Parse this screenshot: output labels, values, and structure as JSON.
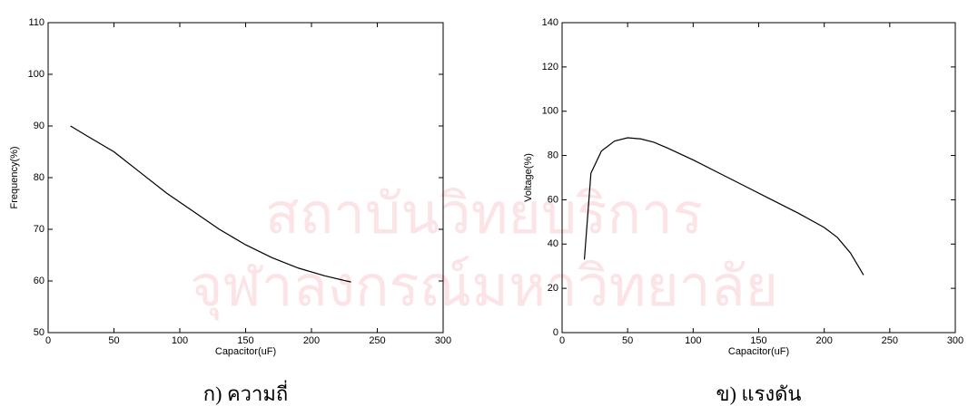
{
  "watermark": [
    "สถาบันวิทยบริการ",
    "จุฬาลงกรณ์มหาวิทยาลัย"
  ],
  "chart_data": [
    {
      "type": "line",
      "caption": "ก) ความถี่",
      "x_label": "Capacitor(uF)",
      "y_label": "Frequency(%)",
      "xlim": [
        0,
        300
      ],
      "xticks": [
        0,
        50,
        100,
        150,
        200,
        250,
        300
      ],
      "ylim": [
        50,
        110
      ],
      "yticks": [
        50,
        60,
        70,
        80,
        90,
        100,
        110
      ],
      "series": [
        {
          "color": "#000000",
          "x": [
            17,
            30,
            50,
            70,
            90,
            110,
            130,
            150,
            170,
            190,
            210,
            230
          ],
          "values": [
            90,
            88,
            85,
            81,
            77,
            73.5,
            70,
            67,
            64.5,
            62.5,
            61,
            59.8
          ]
        }
      ]
    },
    {
      "type": "line",
      "caption": "ข) แรงดัน",
      "x_label": "Capacitor(uF)",
      "y_label": "Voltage(%)",
      "xlim": [
        0,
        300
      ],
      "xticks": [
        0,
        50,
        100,
        150,
        200,
        250,
        300
      ],
      "ylim": [
        0,
        140
      ],
      "yticks": [
        0,
        20,
        40,
        60,
        80,
        100,
        120,
        140
      ],
      "series": [
        {
          "color": "#000000",
          "x": [
            17,
            22,
            30,
            40,
            50,
            60,
            70,
            80,
            100,
            120,
            140,
            160,
            180,
            200,
            210,
            220,
            230
          ],
          "values": [
            33,
            72,
            82,
            86.5,
            88,
            87.5,
            86,
            83.5,
            78,
            72,
            66,
            60,
            54,
            47.5,
            43,
            36,
            26
          ]
        }
      ]
    }
  ]
}
